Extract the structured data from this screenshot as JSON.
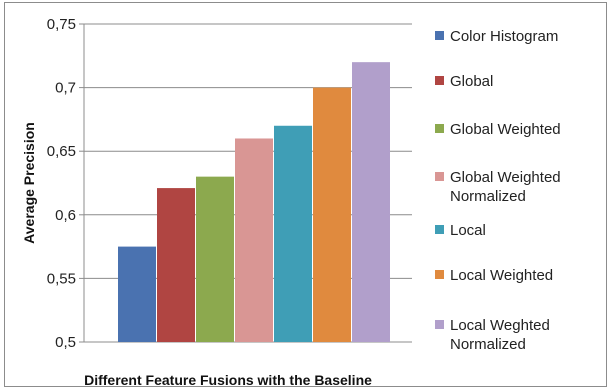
{
  "chart_data": {
    "type": "bar",
    "title": "",
    "xlabel": "Different Feature Fusions with the Baseline",
    "ylabel": "Average Precision",
    "ylim": [
      0.5,
      0.75
    ],
    "yticks": [
      "0,5",
      "0,55",
      "0,6",
      "0,65",
      "0,7",
      "0,75"
    ],
    "grid": true,
    "legend_position": "right",
    "series": [
      {
        "name": "Color Histogram",
        "value": 0.575,
        "color": "#4a72b0"
      },
      {
        "name": "Global",
        "value": 0.621,
        "color": "#b04542"
      },
      {
        "name": "Global Weighted",
        "value": 0.63,
        "color": "#8ca94e"
      },
      {
        "name": "Global Weighted Normalized",
        "legend_lines": [
          "Global Weighted",
          "Normalized"
        ],
        "value": 0.66,
        "color": "#d99694"
      },
      {
        "name": "Local",
        "value": 0.67,
        "color": "#3f9eb6"
      },
      {
        "name": "Local Weighted",
        "value": 0.7,
        "color": "#e08a3e"
      },
      {
        "name": "Local Weghted Normalized",
        "legend_lines": [
          "Local Weghted",
          "Normalized"
        ],
        "value": 0.72,
        "color": "#b19fcb"
      }
    ]
  }
}
